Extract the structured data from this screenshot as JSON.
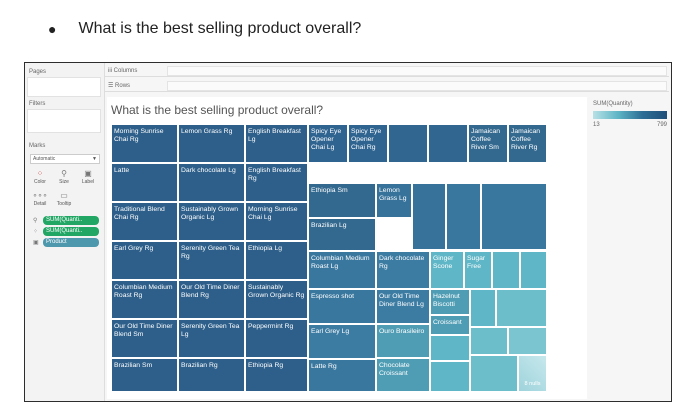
{
  "question": {
    "bullet": "●",
    "text": "What is the best selling product overall?"
  },
  "panes": {
    "pages": "Pages",
    "filters": "Filters",
    "marks": "Marks",
    "marks_type": "Automatic",
    "mark_buttons": [
      {
        "label": "Color",
        "icon": "color-dots-icon"
      },
      {
        "label": "Size",
        "icon": "size-icon"
      },
      {
        "label": "Label",
        "icon": "label-icon"
      },
      {
        "label": "Detail",
        "icon": "detail-icon"
      },
      {
        "label": "Tooltip",
        "icon": "tooltip-icon"
      }
    ],
    "pills": [
      "SUM(Quanti..",
      "SUM(Quanti..",
      "Product"
    ]
  },
  "shelves": {
    "columns": "iii Columns",
    "rows": "☰ Rows"
  },
  "viz": {
    "title": "What is the best selling product overall?"
  },
  "legend": {
    "title": "SUM(Quantity)",
    "min": "13",
    "max": "799"
  },
  "colors": {
    "dark": "#2d5f8a",
    "mid": "#3f7fa3",
    "teal": "#5fb6c6",
    "light": "#9fd3dc"
  },
  "chart_data": {
    "type": "treemap",
    "tiles": [
      {
        "label": "Morning Sunrise Chai Rg"
      },
      {
        "label": "Lemon Grass Rg"
      },
      {
        "label": "English Breakfast Lg"
      },
      {
        "label": "Spicy Eye Opener Chai Lg"
      },
      {
        "label": "Spicy Eye Opener Chai Rg"
      },
      {
        "label": ""
      },
      {
        "label": ""
      },
      {
        "label": "Jamaican Coffee River Sm"
      },
      {
        "label": "Jamaican Coffee River Rg"
      },
      {
        "label": "Latte"
      },
      {
        "label": "Dark chocolate Lg"
      },
      {
        "label": "English Breakfast Rg"
      },
      {
        "label": "Ethiopia Sm"
      },
      {
        "label": "Lemon Grass Lg"
      },
      {
        "label": ""
      },
      {
        "label": ""
      },
      {
        "label": ""
      },
      {
        "label": "Traditional Blend Chai Rg"
      },
      {
        "label": "Sustainably Grown Organic Lg"
      },
      {
        "label": "Morning Sunrise Chai Lg"
      },
      {
        "label": "Brazilian Lg"
      },
      {
        "label": "Earl Grey Rg"
      },
      {
        "label": "Serenity Green Tea Rg"
      },
      {
        "label": "Ethiopia Lg"
      },
      {
        "label": "Columbian Medium Roast Lg"
      },
      {
        "label": "Dark chocolate Rg"
      },
      {
        "label": "Ginger Scone"
      },
      {
        "label": "Sugar Free"
      },
      {
        "label": ""
      },
      {
        "label": ""
      },
      {
        "label": "Columbian Medium Roast Rg"
      },
      {
        "label": "Our Old Time Diner Blend Rg"
      },
      {
        "label": "Sustainably Grown Organic Rg"
      },
      {
        "label": "Espresso shot"
      },
      {
        "label": "Our Old Time Diner Blend Lg"
      },
      {
        "label": "Hazelnut Biscotti"
      },
      {
        "label": ""
      },
      {
        "label": ""
      },
      {
        "label": "Our Old Time Diner Blend Sm"
      },
      {
        "label": "Serenity Green Tea Lg"
      },
      {
        "label": "Peppermint Rg"
      },
      {
        "label": "Earl Grey Lg"
      },
      {
        "label": "Croissant"
      },
      {
        "label": "Ouro Brasileiro"
      },
      {
        "label": ""
      },
      {
        "label": ""
      },
      {
        "label": "Brazilian Sm"
      },
      {
        "label": "Brazilian Rg"
      },
      {
        "label": "Ethiopia Rg"
      },
      {
        "label": "Latte Rg"
      },
      {
        "label": "Chocolate Croissant"
      },
      {
        "label": ""
      },
      {
        "label": ""
      },
      {
        "label": ""
      },
      {
        "label": "8 nulls"
      }
    ]
  }
}
